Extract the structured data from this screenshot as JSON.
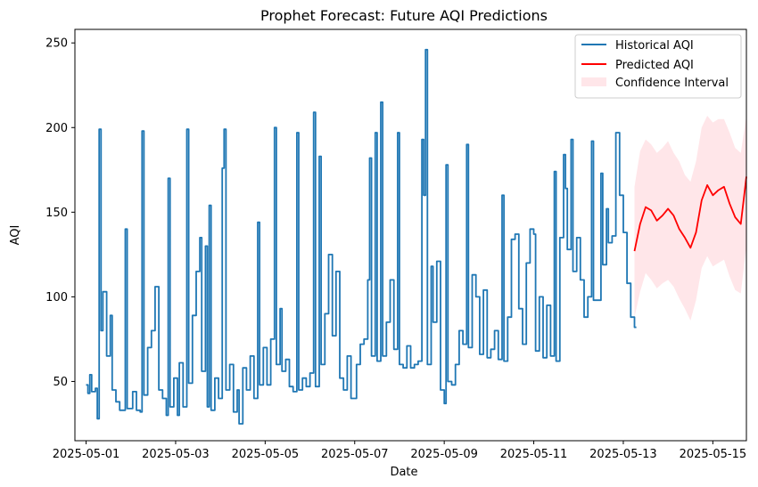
{
  "chart_data": {
    "type": "line",
    "title": "Prophet Forecast: Future AQI Predictions",
    "xlabel": "Date",
    "ylabel": "AQI",
    "x_axis": {
      "type": "date",
      "range": [
        "2025-04-30T18:00",
        "2025-05-15T18:00"
      ],
      "ticks": [
        "2025-05-01",
        "2025-05-03",
        "2025-05-05",
        "2025-05-07",
        "2025-05-09",
        "2025-05-11",
        "2025-05-13",
        "2025-05-15"
      ]
    },
    "y_axis": {
      "range": [
        15,
        258
      ],
      "ticks": [
        50,
        100,
        150,
        200,
        250
      ]
    },
    "grid": false,
    "legend": {
      "placement": "top-right"
    },
    "series": [
      {
        "name": "Historical AQI",
        "color": "#1f77b4",
        "points": [
          [
            "2025-05-01T00:00",
            48
          ],
          [
            "2025-05-01T01:00",
            43
          ],
          [
            "2025-05-01T02:00",
            54
          ],
          [
            "2025-05-01T03:00",
            44
          ],
          [
            "2025-05-01T05:00",
            46
          ],
          [
            "2025-05-01T06:00",
            28
          ],
          [
            "2025-05-01T07:00",
            199
          ],
          [
            "2025-05-01T08:00",
            80
          ],
          [
            "2025-05-01T09:00",
            103
          ],
          [
            "2025-05-01T11:00",
            65
          ],
          [
            "2025-05-01T13:00",
            89
          ],
          [
            "2025-05-01T14:00",
            45
          ],
          [
            "2025-05-01T16:00",
            38
          ],
          [
            "2025-05-01T18:00",
            33
          ],
          [
            "2025-05-01T20:00",
            33
          ],
          [
            "2025-05-01T21:00",
            140
          ],
          [
            "2025-05-01T22:00",
            34
          ],
          [
            "2025-05-02T01:00",
            44
          ],
          [
            "2025-05-02T03:00",
            33
          ],
          [
            "2025-05-02T05:00",
            32
          ],
          [
            "2025-05-02T06:00",
            198
          ],
          [
            "2025-05-02T07:00",
            42
          ],
          [
            "2025-05-02T09:00",
            70
          ],
          [
            "2025-05-02T11:00",
            80
          ],
          [
            "2025-05-02T13:00",
            106
          ],
          [
            "2025-05-02T15:00",
            45
          ],
          [
            "2025-05-02T17:00",
            40
          ],
          [
            "2025-05-02T19:00",
            30
          ],
          [
            "2025-05-02T20:00",
            170
          ],
          [
            "2025-05-02T21:00",
            35
          ],
          [
            "2025-05-02T23:00",
            52
          ],
          [
            "2025-05-03T01:00",
            30
          ],
          [
            "2025-05-03T02:00",
            61
          ],
          [
            "2025-05-03T04:00",
            35
          ],
          [
            "2025-05-03T06:00",
            199
          ],
          [
            "2025-05-03T07:00",
            49
          ],
          [
            "2025-05-03T09:00",
            89
          ],
          [
            "2025-05-03T11:00",
            115
          ],
          [
            "2025-05-03T13:00",
            135
          ],
          [
            "2025-05-03T14:00",
            56
          ],
          [
            "2025-05-03T16:00",
            130
          ],
          [
            "2025-05-03T17:00",
            35
          ],
          [
            "2025-05-03T18:00",
            154
          ],
          [
            "2025-05-03T19:00",
            33
          ],
          [
            "2025-05-03T21:00",
            52
          ],
          [
            "2025-05-03T23:00",
            40
          ],
          [
            "2025-05-04T01:00",
            176
          ],
          [
            "2025-05-04T02:00",
            199
          ],
          [
            "2025-05-04T03:00",
            45
          ],
          [
            "2025-05-04T05:00",
            60
          ],
          [
            "2025-05-04T07:00",
            32
          ],
          [
            "2025-05-04T09:00",
            45
          ],
          [
            "2025-05-04T10:00",
            25
          ],
          [
            "2025-05-04T12:00",
            58
          ],
          [
            "2025-05-04T14:00",
            45
          ],
          [
            "2025-05-04T16:00",
            65
          ],
          [
            "2025-05-04T18:00",
            40
          ],
          [
            "2025-05-04T20:00",
            144
          ],
          [
            "2025-05-04T21:00",
            48
          ],
          [
            "2025-05-04T23:00",
            70
          ],
          [
            "2025-05-05T01:00",
            48
          ],
          [
            "2025-05-05T03:00",
            75
          ],
          [
            "2025-05-05T05:00",
            200
          ],
          [
            "2025-05-05T06:00",
            60
          ],
          [
            "2025-05-05T08:00",
            93
          ],
          [
            "2025-05-05T09:00",
            56
          ],
          [
            "2025-05-05T11:00",
            63
          ],
          [
            "2025-05-05T13:00",
            47
          ],
          [
            "2025-05-05T15:00",
            44
          ],
          [
            "2025-05-05T17:00",
            197
          ],
          [
            "2025-05-05T18:00",
            45
          ],
          [
            "2025-05-05T20:00",
            52
          ],
          [
            "2025-05-05T22:00",
            47
          ],
          [
            "2025-05-06T00:00",
            55
          ],
          [
            "2025-05-06T02:00",
            209
          ],
          [
            "2025-05-06T03:00",
            47
          ],
          [
            "2025-05-06T05:00",
            183
          ],
          [
            "2025-05-06T06:00",
            60
          ],
          [
            "2025-05-06T08:00",
            90
          ],
          [
            "2025-05-06T10:00",
            125
          ],
          [
            "2025-05-06T12:00",
            77
          ],
          [
            "2025-05-06T14:00",
            115
          ],
          [
            "2025-05-06T16:00",
            52
          ],
          [
            "2025-05-06T18:00",
            45
          ],
          [
            "2025-05-06T20:00",
            65
          ],
          [
            "2025-05-06T22:00",
            40
          ],
          [
            "2025-05-07T01:00",
            60
          ],
          [
            "2025-05-07T03:00",
            72
          ],
          [
            "2025-05-07T05:00",
            75
          ],
          [
            "2025-05-07T07:00",
            110
          ],
          [
            "2025-05-07T08:00",
            182
          ],
          [
            "2025-05-07T09:00",
            65
          ],
          [
            "2025-05-07T11:00",
            197
          ],
          [
            "2025-05-07T12:00",
            62
          ],
          [
            "2025-05-07T14:00",
            215
          ],
          [
            "2025-05-07T15:00",
            65
          ],
          [
            "2025-05-07T17:00",
            85
          ],
          [
            "2025-05-07T19:00",
            110
          ],
          [
            "2025-05-07T21:00",
            69
          ],
          [
            "2025-05-07T23:00",
            197
          ],
          [
            "2025-05-08T00:00",
            60
          ],
          [
            "2025-05-08T02:00",
            58
          ],
          [
            "2025-05-08T04:00",
            71
          ],
          [
            "2025-05-08T06:00",
            58
          ],
          [
            "2025-05-08T08:00",
            60
          ],
          [
            "2025-05-08T10:00",
            62
          ],
          [
            "2025-05-08T12:00",
            193
          ],
          [
            "2025-05-08T13:00",
            160
          ],
          [
            "2025-05-08T14:00",
            246
          ],
          [
            "2025-05-08T15:00",
            60
          ],
          [
            "2025-05-08T17:00",
            118
          ],
          [
            "2025-05-08T18:00",
            85
          ],
          [
            "2025-05-08T20:00",
            121
          ],
          [
            "2025-05-08T22:00",
            45
          ],
          [
            "2025-05-09T00:00",
            37
          ],
          [
            "2025-05-09T01:00",
            178
          ],
          [
            "2025-05-09T02:00",
            50
          ],
          [
            "2025-05-09T04:00",
            48
          ],
          [
            "2025-05-09T06:00",
            60
          ],
          [
            "2025-05-09T08:00",
            80
          ],
          [
            "2025-05-09T10:00",
            72
          ],
          [
            "2025-05-09T12:00",
            190
          ],
          [
            "2025-05-09T13:00",
            70
          ],
          [
            "2025-05-09T15:00",
            113
          ],
          [
            "2025-05-09T17:00",
            100
          ],
          [
            "2025-05-09T19:00",
            66
          ],
          [
            "2025-05-09T21:00",
            104
          ],
          [
            "2025-05-09T23:00",
            64
          ],
          [
            "2025-05-10T01:00",
            69
          ],
          [
            "2025-05-10T03:00",
            80
          ],
          [
            "2025-05-10T05:00",
            63
          ],
          [
            "2025-05-10T07:00",
            160
          ],
          [
            "2025-05-10T08:00",
            62
          ],
          [
            "2025-05-10T10:00",
            88
          ],
          [
            "2025-05-10T12:00",
            134
          ],
          [
            "2025-05-10T14:00",
            137
          ],
          [
            "2025-05-10T16:00",
            93
          ],
          [
            "2025-05-10T18:00",
            72
          ],
          [
            "2025-05-10T20:00",
            120
          ],
          [
            "2025-05-10T22:00",
            140
          ],
          [
            "2025-05-11T00:00",
            137
          ],
          [
            "2025-05-11T01:00",
            68
          ],
          [
            "2025-05-11T03:00",
            100
          ],
          [
            "2025-05-11T05:00",
            64
          ],
          [
            "2025-05-11T07:00",
            95
          ],
          [
            "2025-05-11T09:00",
            65
          ],
          [
            "2025-05-11T11:00",
            174
          ],
          [
            "2025-05-11T12:00",
            62
          ],
          [
            "2025-05-11T14:00",
            135
          ],
          [
            "2025-05-11T16:00",
            184
          ],
          [
            "2025-05-11T17:00",
            164
          ],
          [
            "2025-05-11T18:00",
            128
          ],
          [
            "2025-05-11T20:00",
            193
          ],
          [
            "2025-05-11T21:00",
            115
          ],
          [
            "2025-05-11T23:00",
            135
          ],
          [
            "2025-05-12T01:00",
            110
          ],
          [
            "2025-05-12T03:00",
            88
          ],
          [
            "2025-05-12T05:00",
            100
          ],
          [
            "2025-05-12T07:00",
            192
          ],
          [
            "2025-05-12T08:00",
            98
          ],
          [
            "2025-05-12T10:00",
            98
          ],
          [
            "2025-05-12T12:00",
            173
          ],
          [
            "2025-05-12T13:00",
            119
          ],
          [
            "2025-05-12T15:00",
            152
          ],
          [
            "2025-05-12T16:00",
            132
          ],
          [
            "2025-05-12T18:00",
            136
          ],
          [
            "2025-05-12T20:00",
            197
          ],
          [
            "2025-05-12T22:00",
            160
          ],
          [
            "2025-05-13T00:00",
            138
          ],
          [
            "2025-05-13T02:00",
            108
          ],
          [
            "2025-05-13T04:00",
            88
          ],
          [
            "2025-05-13T06:00",
            82
          ],
          [
            "2025-05-13T07:00",
            82
          ]
        ]
      },
      {
        "name": "Predicted AQI",
        "color": "#ff0000",
        "points": [
          [
            "2025-05-13T06:00",
            127
          ],
          [
            "2025-05-13T09:00",
            143
          ],
          [
            "2025-05-13T12:00",
            153
          ],
          [
            "2025-05-13T15:00",
            151
          ],
          [
            "2025-05-13T18:00",
            145
          ],
          [
            "2025-05-13T21:00",
            148
          ],
          [
            "2025-05-14T00:00",
            152
          ],
          [
            "2025-05-14T03:00",
            148
          ],
          [
            "2025-05-14T06:00",
            140
          ],
          [
            "2025-05-14T09:00",
            135
          ],
          [
            "2025-05-14T12:00",
            129
          ],
          [
            "2025-05-14T15:00",
            138
          ],
          [
            "2025-05-14T18:00",
            157
          ],
          [
            "2025-05-14T21:00",
            166
          ],
          [
            "2025-05-15T00:00",
            160
          ],
          [
            "2025-05-15T03:00",
            163
          ],
          [
            "2025-05-15T06:00",
            165
          ],
          [
            "2025-05-15T09:00",
            155
          ],
          [
            "2025-05-15T12:00",
            147
          ],
          [
            "2025-05-15T15:00",
            143
          ],
          [
            "2025-05-15T18:00",
            171
          ]
        ]
      }
    ],
    "bands": [
      {
        "name": "Confidence Interval",
        "color": "#ffb6c1",
        "opacity": 0.35,
        "points": [
          [
            "2025-05-13T06:00",
            88,
            165
          ],
          [
            "2025-05-13T09:00",
            103,
            186
          ],
          [
            "2025-05-13T12:00",
            114,
            193
          ],
          [
            "2025-05-13T15:00",
            110,
            190
          ],
          [
            "2025-05-13T18:00",
            105,
            185
          ],
          [
            "2025-05-13T21:00",
            108,
            188
          ],
          [
            "2025-05-14T00:00",
            110,
            192
          ],
          [
            "2025-05-14T03:00",
            106,
            185
          ],
          [
            "2025-05-14T06:00",
            99,
            180
          ],
          [
            "2025-05-14T09:00",
            93,
            172
          ],
          [
            "2025-05-14T12:00",
            86,
            168
          ],
          [
            "2025-05-14T15:00",
            98,
            180
          ],
          [
            "2025-05-14T18:00",
            117,
            200
          ],
          [
            "2025-05-14T21:00",
            124,
            207
          ],
          [
            "2025-05-15T00:00",
            118,
            203
          ],
          [
            "2025-05-15T03:00",
            120,
            205
          ],
          [
            "2025-05-15T06:00",
            122,
            205
          ],
          [
            "2025-05-15T09:00",
            112,
            197
          ],
          [
            "2025-05-15T12:00",
            104,
            188
          ],
          [
            "2025-05-15T15:00",
            102,
            185
          ],
          [
            "2025-05-15T18:00",
            130,
            207
          ]
        ]
      }
    ]
  }
}
